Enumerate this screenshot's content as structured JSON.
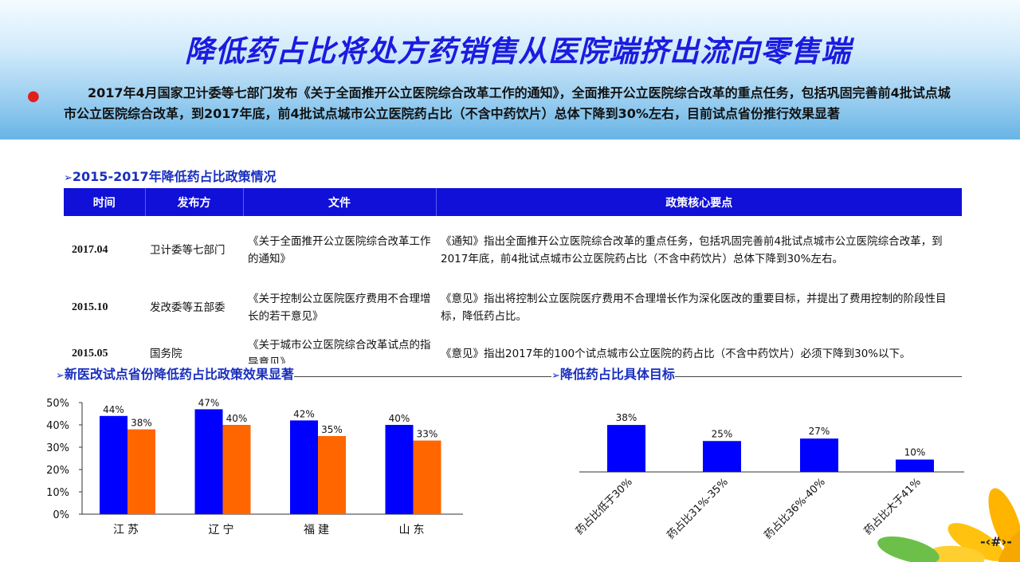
{
  "title": "降低药占比将处方药销售从医院端挤出流向零售端",
  "intro_bullet": "●",
  "intro": "2017年4月国家卫计委等七部门发布《关于全面推开公立医院综合改革工作的通知》，全面推开公立医院综合改革的重点任务，包括巩固完善前4批试点城市公立医院综合改革，到2017年底，前4批试点城市公立医院药占比（不含中药饮片）总体下降到30%左右，目前试点省份推行效果显著",
  "section_policy": "2015-2017年降低药占比政策情况",
  "table": {
    "headers": [
      "时间",
      "发布方",
      "文件",
      "政策核心要点"
    ],
    "rows": [
      [
        "2017.04",
        "卫计委等七部门",
        "《关于全面推开公立医院综合改革工作的通知》",
        "《通知》指出全面推开公立医院综合改革的重点任务，包括巩固完善前4批试点城市公立医院综合改革，到2017年底，前4批试点城市公立医院药占比（不含中药饮片）总体下降到30%左右。"
      ],
      [
        "2015.10",
        "发改委等五部委",
        "《关于控制公立医院医疗费用不合理增长的若干意见》",
        "《意见》指出将控制公立医院医疗费用不合理增长作为深化医改的重要目标，并提出了费用控制的阶段性目标，降低药占比。"
      ],
      [
        "2015.05",
        "国务院",
        "《关于城市公立医院综合改革试点的指导意见》",
        "《意见》指出2017年的100个试点城市公立医院的药占比（不含中药饮片）必须下降到30%以下。"
      ]
    ]
  },
  "section_left_chart": "新医改试点省份降低药占比政策效果显著",
  "section_right_chart": "降低药占比具体目标",
  "page_number": "-‹#›-",
  "colors": {
    "bar_blue": "#0000ff",
    "bar_orange": "#ff6600",
    "title_blue": "#1b1be0",
    "header_blue": "#1010d8"
  },
  "chart_data": [
    {
      "type": "bar",
      "categories": [
        "江苏",
        "辽宁",
        "福建",
        "山东"
      ],
      "series": [
        {
          "values": [
            44,
            47,
            42,
            40
          ]
        },
        {
          "values": [
            38,
            40,
            35,
            33
          ]
        }
      ],
      "data_labels": [
        [
          "44%",
          "47%",
          "42%",
          "40%"
        ],
        [
          "38%",
          "40%",
          "35%",
          "33%"
        ]
      ],
      "yticks": [
        "0%",
        "10%",
        "20%",
        "30%",
        "40%",
        "50%"
      ],
      "ylim": [
        0,
        50
      ]
    },
    {
      "type": "bar",
      "categories": [
        "药占比低于30%",
        "药占比31%-35%",
        "药占比36%-40%",
        "药占比大于41%"
      ],
      "values": [
        38,
        25,
        27,
        10
      ],
      "data_labels": [
        "38%",
        "25%",
        "27%",
        "10%"
      ],
      "ylim": [
        0,
        40
      ]
    }
  ]
}
